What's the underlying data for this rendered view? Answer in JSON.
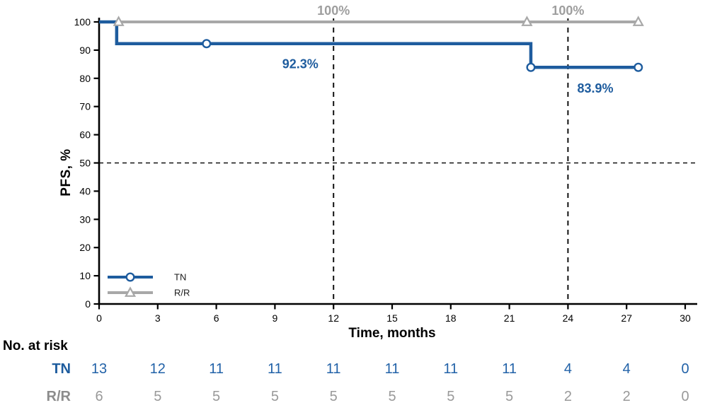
{
  "figure_title": "",
  "chart_data": {
    "type": "line",
    "subtype": "kaplan-meier-step",
    "title": "",
    "xlabel": "Time, months",
    "ylabel": "PFS, %",
    "x_axis": {
      "ticks": [
        0,
        3,
        6,
        9,
        12,
        15,
        18,
        21,
        24,
        27,
        30
      ],
      "range": [
        0,
        30
      ]
    },
    "y_axis": {
      "ticks": [
        0,
        10,
        20,
        30,
        40,
        50,
        60,
        70,
        80,
        90,
        100
      ],
      "range": [
        0,
        100
      ]
    },
    "grid": "off",
    "reference_lines": {
      "horizontal_y": 50,
      "vertical_x": [
        12,
        24
      ],
      "color": "#111111"
    },
    "series": [
      {
        "name": "TN",
        "color": "#1e5c9e",
        "line_width": 4.5,
        "marker": "circle",
        "steps": [
          [
            0,
            100
          ],
          [
            0.9,
            100
          ],
          [
            0.9,
            92.3
          ],
          [
            22.1,
            92.3
          ],
          [
            22.1,
            83.9
          ],
          [
            27.6,
            83.9
          ]
        ],
        "censors": [
          [
            5.5,
            92.3
          ],
          [
            22.1,
            83.9
          ],
          [
            27.6,
            83.9
          ]
        ]
      },
      {
        "name": "R/R",
        "color": "#a8a8a8",
        "line_width": 4,
        "marker": "triangle",
        "steps": [
          [
            0,
            100
          ],
          [
            27.6,
            100
          ]
        ],
        "censors": [
          [
            1.0,
            100
          ],
          [
            21.9,
            100
          ],
          [
            27.6,
            100
          ]
        ]
      }
    ],
    "annotations": [
      {
        "text": "100%",
        "x": 12,
        "y_pct": 102.5,
        "color": "#9e9e9e"
      },
      {
        "text": "100%",
        "x": 24,
        "y_pct": 102.5,
        "color": "#9e9e9e"
      },
      {
        "text": "92.3%",
        "x": 10.3,
        "y_pct": 83.6,
        "color": "#1e5c9e"
      },
      {
        "text": "83.9%",
        "x": 25.4,
        "y_pct": 74.9,
        "color": "#1e5c9e"
      }
    ],
    "legend": {
      "position": "inside-bottom-left",
      "entries": [
        "TN",
        "R/R"
      ]
    }
  },
  "risk_table": {
    "title": "No. at risk",
    "time_points": [
      0,
      3,
      6,
      9,
      12,
      15,
      18,
      21,
      24,
      27,
      30
    ],
    "rows": [
      {
        "label": "TN",
        "label_color": "#1e5c9e",
        "value_color": "#2262a8",
        "values": [
          13,
          12,
          11,
          11,
          11,
          11,
          11,
          11,
          4,
          4,
          0
        ]
      },
      {
        "label": "R/R",
        "label_color": "#8c8c8c",
        "value_color": "#999999",
        "values": [
          6,
          5,
          5,
          5,
          5,
          5,
          5,
          5,
          2,
          2,
          0
        ]
      }
    ]
  },
  "colors": {
    "tn_blue": "#1e5c9e",
    "rr_gray": "#a8a8a8",
    "axis_black": "#000000"
  }
}
